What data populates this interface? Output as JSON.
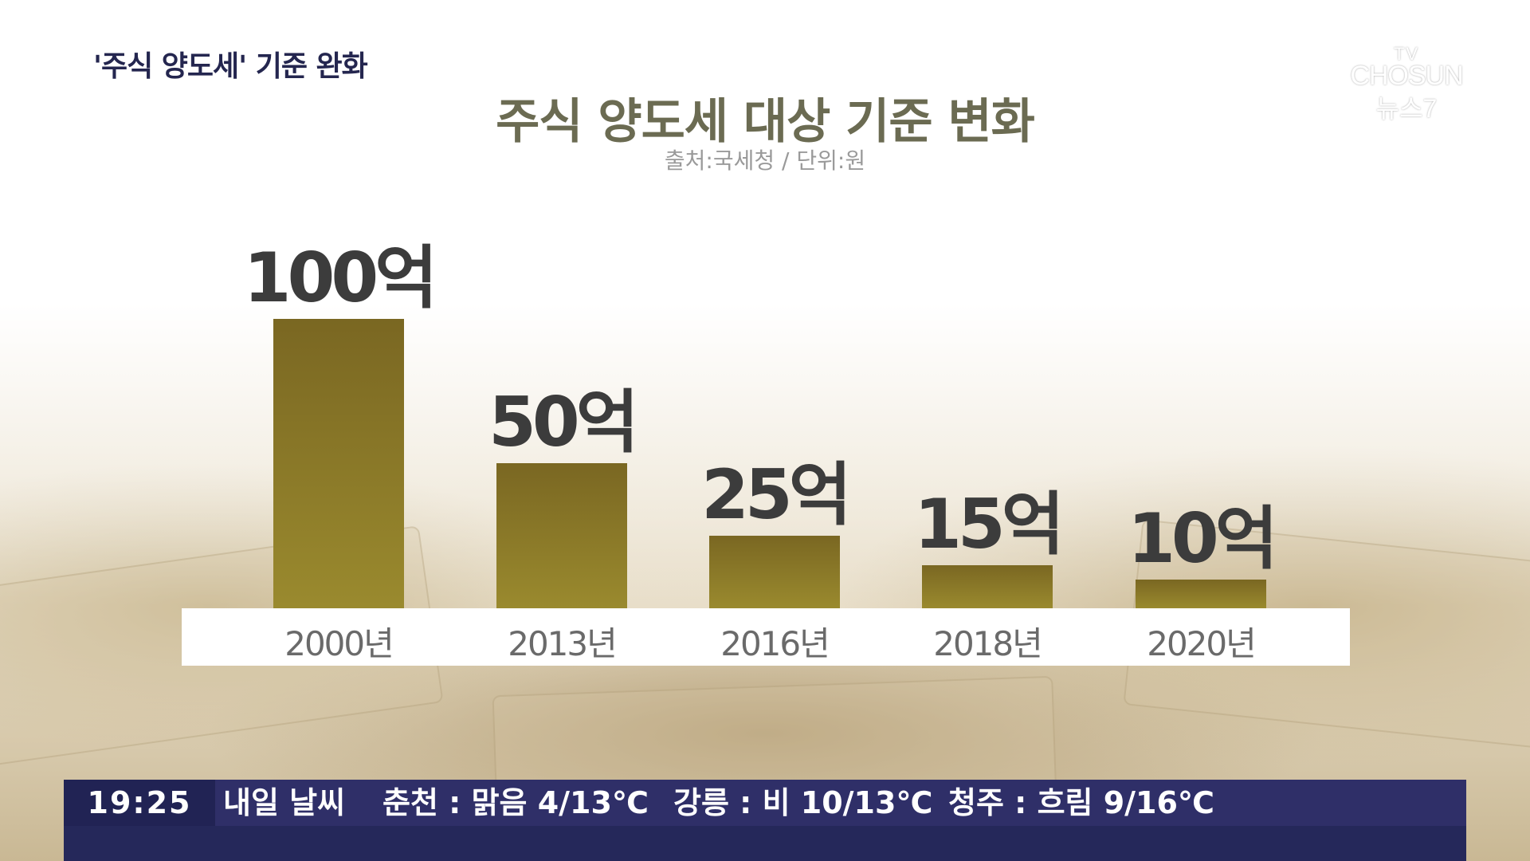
{
  "header": {
    "segment_title": "'주식 양도세' 기준 완화"
  },
  "logo": {
    "line1": "TV",
    "line2": "CHOSUN",
    "line3": "뉴스7"
  },
  "chart_data": {
    "type": "bar",
    "title": "주식 양도세 대상 기준 변화",
    "subtitle": "출처:국세청 / 단위:원",
    "categories": [
      "2000년",
      "2013년",
      "2016년",
      "2018년",
      "2020년"
    ],
    "values": [
      100,
      50,
      25,
      15,
      10
    ],
    "value_labels": [
      "100억",
      "50억",
      "25억",
      "15억",
      "10억"
    ],
    "bar_color": "#8a7a28",
    "grid": false,
    "legend": "none"
  },
  "ticker": {
    "time": "19:25",
    "items": [
      "내일 날씨",
      "춘천 : 맑음 4/13℃",
      "강릉 : 비 10/13℃",
      "청주 : 흐림 9/16℃"
    ]
  }
}
